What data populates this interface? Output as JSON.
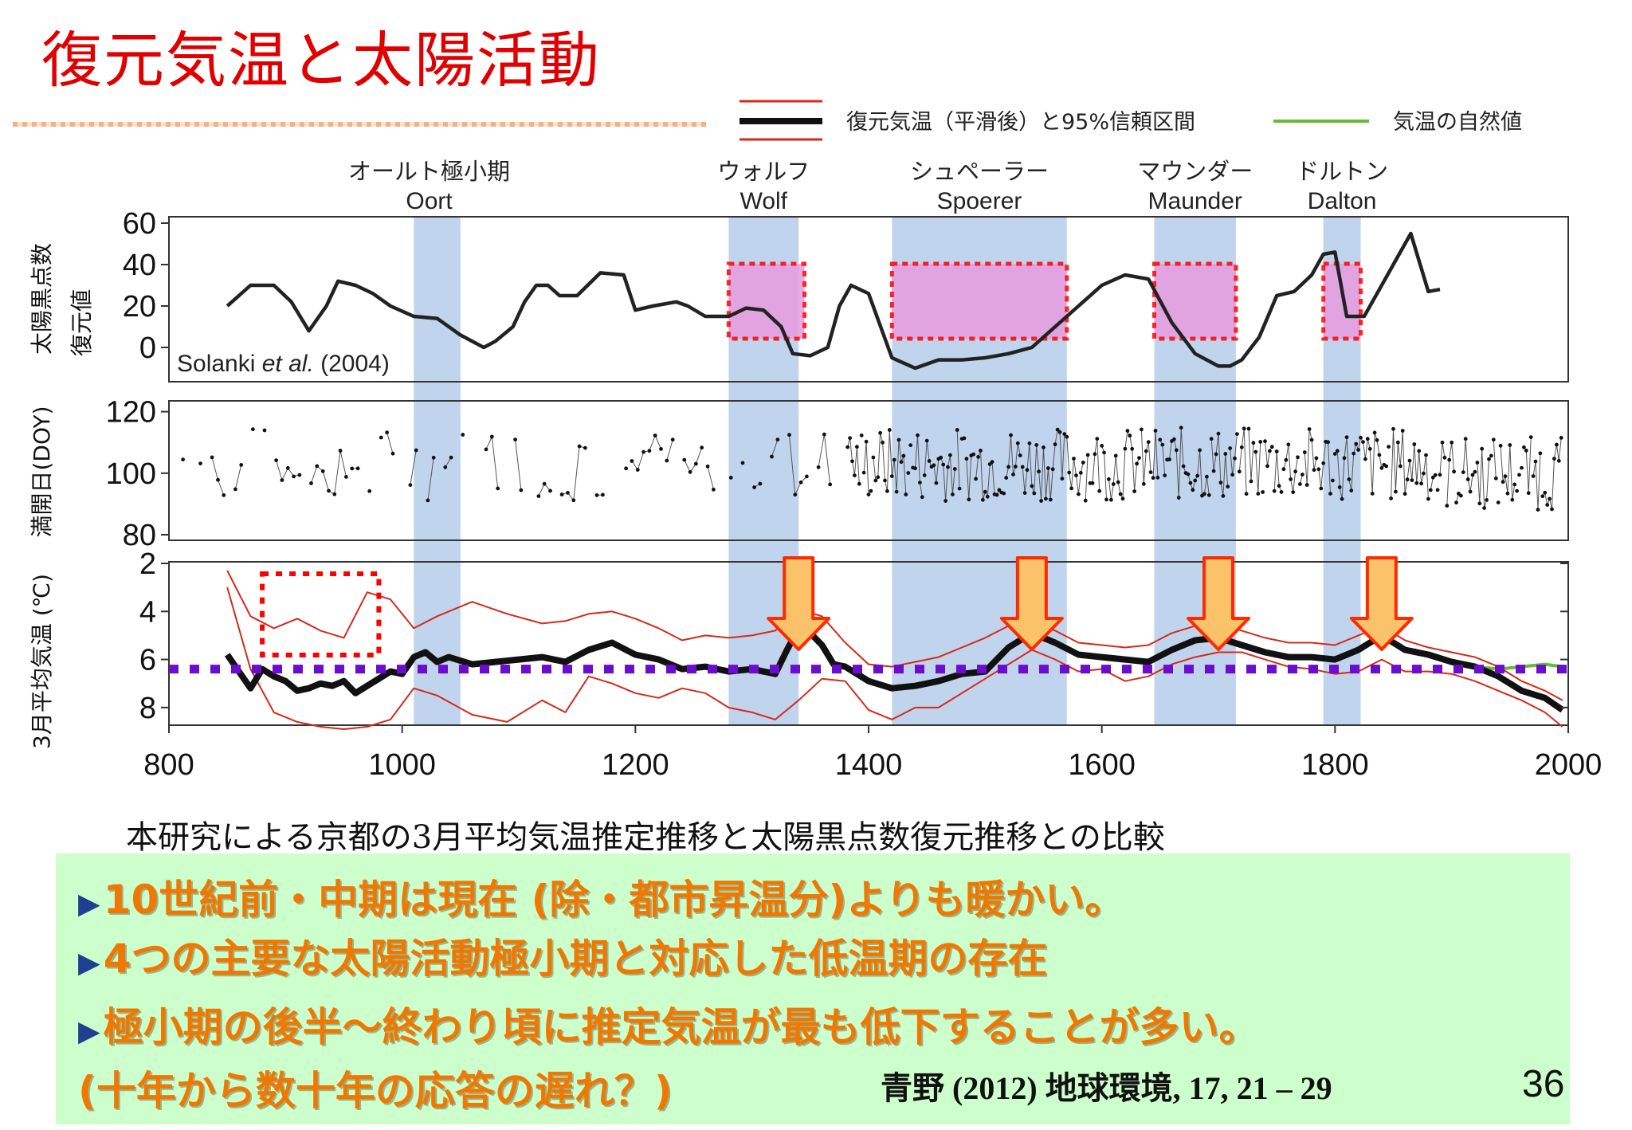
{
  "slide": {
    "title": "復元気温と太陽活動",
    "caption": "本研究による京都の3月平均気温推定推移と太陽黒点数復元推移との比較",
    "bullets": [
      "10世紀前・中期は現在 (除・都市昇温分)よりも暖かい。",
      "4つの主要な太陽活動極小期と対応した低温期の存在",
      "極小期の後半～終わり頃に推定気温が最も低下することが多い。",
      "(十年から数十年の応答の遅れ？)"
    ],
    "bullet_mark": "▶",
    "citation": "青野 (2012) 地球環境, 17, 21 – 29",
    "page_number": "36"
  },
  "colors": {
    "title": "#e00000",
    "minima_band": "#a9c3e6",
    "highlight_fill": "#e79ce0",
    "highlight_border": "#ff0000",
    "reference_line": "#6a0dcc",
    "arrow_fill": "#fcc26a",
    "arrow_border": "#ff2a00",
    "confidence_interval": "#d42a1a",
    "temperature": "#111111",
    "natural": "#66bb33",
    "summary_box": "#ccffcc",
    "bullet_text": "#f07800"
  },
  "chart_data": {
    "type": "line",
    "x_range": [
      800,
      2000
    ],
    "x_ticks": [
      "800",
      "1000",
      "1200",
      "1400",
      "1600",
      "1800",
      "2000"
    ],
    "legend": {
      "position": "top-right",
      "entries": [
        "復元気温（平滑後）と95%信頼区間",
        "気温の自然値"
      ]
    },
    "solar_minima": [
      {
        "name_jp": "オールト極小期",
        "name_en": "Oort",
        "start": 1010,
        "end": 1050
      },
      {
        "name_jp": "ウォルフ",
        "name_en": "Wolf",
        "start": 1280,
        "end": 1340
      },
      {
        "name_jp": "シュペーラー",
        "name_en": "Spoerer",
        "start": 1420,
        "end": 1570
      },
      {
        "name_jp": "マウンダー",
        "name_en": "Maunder",
        "start": 1645,
        "end": 1715
      },
      {
        "name_jp": "ドルトン",
        "name_en": "Dalton",
        "start": 1790,
        "end": 1822
      }
    ],
    "panels": [
      {
        "id": "sunspot",
        "ylabel": "太陽黒点数\n復元値",
        "ylim": [
          -10,
          60
        ],
        "yticks": [
          "0",
          "20",
          "40",
          "60"
        ],
        "annotation": "Solanki et al. (2004)",
        "highlight_periods": [
          [
            1280,
            1345
          ],
          [
            1420,
            1570
          ],
          [
            1645,
            1715
          ],
          [
            1790,
            1822
          ]
        ],
        "x": [
          850,
          870,
          890,
          905,
          920,
          935,
          945,
          960,
          975,
          990,
          1010,
          1030,
          1050,
          1070,
          1080,
          1095,
          1105,
          1115,
          1125,
          1135,
          1150,
          1170,
          1190,
          1200,
          1215,
          1235,
          1245,
          1260,
          1280,
          1295,
          1310,
          1325,
          1335,
          1350,
          1365,
          1375,
          1385,
          1400,
          1420,
          1440,
          1460,
          1480,
          1500,
          1520,
          1540,
          1560,
          1580,
          1600,
          1620,
          1640,
          1660,
          1680,
          1700,
          1710,
          1720,
          1735,
          1750,
          1765,
          1780,
          1790,
          1800,
          1810,
          1825,
          1840,
          1865,
          1880,
          1890
        ],
        "y": [
          20,
          30,
          30,
          22,
          8,
          20,
          32,
          30,
          26,
          20,
          15,
          14,
          6,
          0,
          3,
          10,
          22,
          30,
          30,
          25,
          25,
          36,
          35,
          18,
          20,
          22,
          20,
          15,
          15,
          19,
          18,
          10,
          -3,
          -4,
          0,
          20,
          30,
          26,
          -5,
          -10,
          -6,
          -6,
          -5,
          -3,
          0,
          10,
          20,
          30,
          35,
          33,
          12,
          -3,
          -9,
          -9,
          -6,
          5,
          25,
          27,
          35,
          45,
          46,
          15,
          15,
          30,
          55,
          27,
          28
        ]
      },
      {
        "id": "bloom_doy",
        "ylabel": "満開日(DOY)",
        "ylim": [
          80,
          130
        ],
        "yticks": [
          "80",
          "100",
          "120"
        ],
        "note": "Scatter of individual full-bloom dates (DOY) with thin connecting lines; dense from c. 1380 onward, mostly between 90 and 115."
      },
      {
        "id": "temperature",
        "ylabel": "3月平均気温 (℃)",
        "ylim": [
          2,
          9
        ],
        "yticks": [
          "2",
          "4",
          "6",
          "8"
        ],
        "reference_temperature": 6.4,
        "warm_period_box": [
          880,
          980
        ],
        "arrows_at": [
          1340,
          1540,
          1700,
          1840
        ],
        "series": [
          {
            "name": "復元気温（平滑後）",
            "x": [
              850,
              860,
              870,
              880,
              890,
              900,
              910,
              920,
              930,
              940,
              950,
              960,
              970,
              980,
              990,
              1000,
              1010,
              1020,
              1030,
              1040,
              1060,
              1080,
              1100,
              1120,
              1140,
              1160,
              1180,
              1200,
              1220,
              1240,
              1260,
              1280,
              1300,
              1320,
              1330,
              1340,
              1350,
              1360,
              1370,
              1380,
              1400,
              1420,
              1440,
              1460,
              1480,
              1500,
              1520,
              1540,
              1560,
              1580,
              1600,
              1620,
              1640,
              1660,
              1680,
              1700,
              1720,
              1740,
              1760,
              1780,
              1800,
              1820,
              1840,
              1860,
              1880,
              1900,
              1920,
              1940,
              1960,
              1980,
              1995
            ],
            "y": [
              5.8,
              6.5,
              7.2,
              6.4,
              6.7,
              6.9,
              7.3,
              7.2,
              7.0,
              7.1,
              6.9,
              7.4,
              7.1,
              6.8,
              6.5,
              6.6,
              5.9,
              5.7,
              6.1,
              5.9,
              6.2,
              6.1,
              6.0,
              5.9,
              6.1,
              5.6,
              5.3,
              5.8,
              6.0,
              6.4,
              6.3,
              6.5,
              6.4,
              6.6,
              5.6,
              4.7,
              4.9,
              5.4,
              6.2,
              6.3,
              6.9,
              7.2,
              7.1,
              6.9,
              6.6,
              6.5,
              5.5,
              4.9,
              5.3,
              5.8,
              5.9,
              6.0,
              6.1,
              5.6,
              5.2,
              5.1,
              5.4,
              5.7,
              5.9,
              5.9,
              6.0,
              5.6,
              5.0,
              5.6,
              5.8,
              6.1,
              6.3,
              6.7,
              7.3,
              7.6,
              8.1
            ]
          },
          {
            "name": "95%信頼区間 (上限)",
            "x": [
              850,
              870,
              890,
              910,
              930,
              950,
              970,
              990,
              1010,
              1030,
              1060,
              1090,
              1120,
              1140,
              1160,
              1180,
              1200,
              1220,
              1240,
              1260,
              1280,
              1300,
              1320,
              1340,
              1360,
              1380,
              1400,
              1420,
              1440,
              1460,
              1480,
              1500,
              1520,
              1540,
              1560,
              1580,
              1600,
              1620,
              1640,
              1660,
              1680,
              1700,
              1720,
              1740,
              1760,
              1780,
              1800,
              1820,
              1840,
              1860,
              1880,
              1900,
              1920,
              1940,
              1960,
              1980,
              1995
            ],
            "y": [
              3.0,
              6.4,
              8.2,
              8.6,
              8.8,
              8.9,
              8.8,
              8.5,
              7.2,
              7.5,
              8.3,
              8.6,
              7.7,
              8.2,
              6.7,
              7.0,
              7.4,
              7.6,
              7.2,
              7.4,
              8.0,
              8.2,
              8.5,
              7.7,
              6.8,
              6.9,
              8.1,
              8.5,
              8.0,
              8.0,
              7.4,
              6.8,
              6.2,
              5.6,
              6.0,
              6.5,
              6.4,
              6.9,
              6.7,
              6.2,
              5.9,
              5.7,
              5.7,
              6.0,
              6.3,
              6.4,
              6.6,
              6.5,
              6.0,
              6.5,
              6.5,
              6.6,
              6.9,
              7.3,
              7.7,
              8.2,
              8.8
            ]
          },
          {
            "name": "95%信頼区間 (下限)",
            "x": [
              850,
              870,
              890,
              910,
              930,
              950,
              970,
              990,
              1010,
              1030,
              1060,
              1090,
              1120,
              1140,
              1160,
              1180,
              1200,
              1220,
              1240,
              1260,
              1280,
              1300,
              1320,
              1340,
              1360,
              1380,
              1400,
              1420,
              1440,
              1460,
              1480,
              1500,
              1520,
              1540,
              1560,
              1580,
              1600,
              1620,
              1640,
              1660,
              1680,
              1700,
              1720,
              1740,
              1760,
              1780,
              1800,
              1820,
              1840,
              1860,
              1880,
              1900,
              1920,
              1940,
              1960,
              1980,
              1995
            ],
            "y": [
              2.3,
              4.2,
              4.7,
              4.3,
              4.8,
              5.1,
              3.2,
              3.5,
              4.7,
              4.2,
              3.6,
              4.1,
              4.5,
              4.4,
              4.1,
              4.0,
              4.3,
              4.7,
              5.2,
              5.0,
              5.1,
              5.0,
              4.8,
              3.9,
              4.2,
              5.3,
              6.2,
              6.3,
              6.1,
              5.9,
              5.5,
              5.1,
              4.6,
              4.4,
              4.8,
              5.3,
              5.4,
              5.5,
              5.4,
              4.9,
              4.6,
              4.5,
              4.8,
              5.1,
              5.3,
              5.3,
              5.4,
              5.0,
              4.6,
              5.2,
              5.5,
              5.7,
              5.9,
              6.3,
              6.9,
              7.3,
              7.7
            ]
          },
          {
            "name": "気温の自然値",
            "x": [
              1880,
              1900,
              1920,
              1940,
              1960,
              1980,
              1995
            ],
            "y": [
              5.8,
              6.1,
              6.3,
              6.4,
              6.3,
              6.2,
              6.3
            ]
          }
        ]
      }
    ]
  }
}
